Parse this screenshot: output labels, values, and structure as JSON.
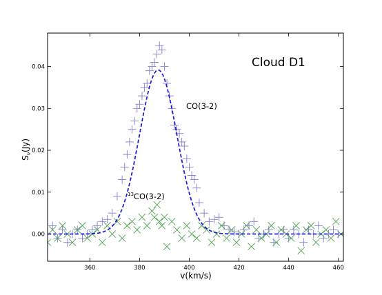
{
  "chart_data": {
    "type": "scatter",
    "title": "",
    "xlabel": "v(km/s)",
    "ylabel": "S",
    "ylabel_sub": "ν",
    "ylabel_unit": "(Jy)",
    "xlim": [
      343,
      462
    ],
    "ylim": [
      -0.0065,
      0.048
    ],
    "xticks": [
      360,
      380,
      400,
      420,
      440,
      460
    ],
    "xtick_labels": [
      "360",
      "380",
      "400",
      "420",
      "440",
      "460"
    ],
    "yticks": [
      0.0,
      0.01,
      0.02,
      0.03,
      0.04
    ],
    "ytick_labels": [
      "0.00",
      "0.01",
      "0.02",
      "0.03",
      "0.04"
    ],
    "grid": false,
    "annotations": {
      "cloud": "Cloud D1",
      "co": "CO(3-2)",
      "co13_sup": "13",
      "co13": "CO(3-2)"
    },
    "series": [
      {
        "marker": "plus",
        "color": "#7f7fcf",
        "x": [
          343,
          345,
          347,
          349,
          351,
          353,
          355,
          357,
          359,
          361,
          363,
          365,
          367,
          369,
          371,
          373,
          374,
          375,
          376,
          377,
          378,
          379,
          380,
          381,
          382,
          383,
          384,
          385,
          386,
          387,
          388,
          389,
          390,
          391,
          392,
          393,
          394,
          395,
          396,
          397,
          398,
          399,
          400,
          401,
          402,
          403,
          404,
          406,
          408,
          410,
          412,
          414,
          416,
          418,
          420,
          422,
          424,
          426,
          428,
          430,
          432,
          434,
          436,
          438,
          440,
          442,
          444,
          446,
          448,
          450,
          452,
          454,
          456,
          458,
          460
        ],
        "y": [
          0.0,
          0.002,
          -0.001,
          0.001,
          -0.002,
          0.0,
          0.001,
          -0.001,
          0.0,
          0.001,
          0.002,
          0.003,
          0.0035,
          0.005,
          0.009,
          0.013,
          0.016,
          0.019,
          0.022,
          0.025,
          0.027,
          0.03,
          0.031,
          0.033,
          0.035,
          0.036,
          0.039,
          0.04,
          0.041,
          0.043,
          0.045,
          0.044,
          0.04,
          0.036,
          0.033,
          0.03,
          0.026,
          0.025,
          0.024,
          0.022,
          0.021,
          0.018,
          0.016,
          0.014,
          0.013,
          0.011,
          0.0075,
          0.005,
          0.003,
          0.0035,
          0.004,
          0.002,
          0.001,
          0.0005,
          0.0,
          0.001,
          0.002,
          0.003,
          -0.001,
          0.0,
          0.001,
          -0.002,
          0.0,
          0.001,
          -0.001,
          0.001,
          0.0,
          -0.002,
          0.001,
          0.0,
          0.002,
          -0.001,
          0.0,
          0.001,
          0.0
        ]
      },
      {
        "marker": "x",
        "color": "#4fa34f",
        "x": [
          343,
          345,
          347,
          349,
          351,
          353,
          355,
          357,
          359,
          361,
          363,
          365,
          367,
          369,
          371,
          373,
          375,
          377,
          379,
          381,
          383,
          385,
          386,
          387,
          388,
          389,
          390,
          391,
          393,
          395,
          397,
          399,
          401,
          403,
          405,
          407,
          409,
          411,
          413,
          415,
          417,
          419,
          421,
          423,
          425,
          427,
          429,
          431,
          433,
          435,
          437,
          439,
          441,
          443,
          445,
          447,
          449,
          451,
          453,
          455,
          457,
          459,
          461
        ],
        "y": [
          -0.002,
          0.001,
          -0.001,
          0.002,
          0.0,
          -0.002,
          0.001,
          0.002,
          -0.001,
          0.0,
          0.001,
          -0.002,
          0.002,
          0.0,
          0.003,
          -0.001,
          0.002,
          0.003,
          0.001,
          0.004,
          0.002,
          0.0055,
          0.004,
          0.007,
          0.003,
          0.002,
          0.004,
          -0.003,
          0.003,
          0.001,
          -0.001,
          0.002,
          0.0,
          -0.001,
          0.002,
          0.001,
          -0.002,
          0.0,
          0.002,
          -0.001,
          0.001,
          -0.002,
          0.0,
          0.002,
          -0.003,
          0.001,
          -0.001,
          0.0,
          0.002,
          -0.002,
          0.001,
          0.0,
          -0.001,
          0.002,
          -0.004,
          0.001,
          0.002,
          -0.002,
          0.0,
          0.001,
          -0.001,
          0.003,
          0.0
        ]
      },
      {
        "line": "dashed-fit",
        "color": "#1f1fd6",
        "amplitude": 0.0392,
        "center": 387.5,
        "sigma": 7.5,
        "baseline": 0.0
      }
    ]
  }
}
